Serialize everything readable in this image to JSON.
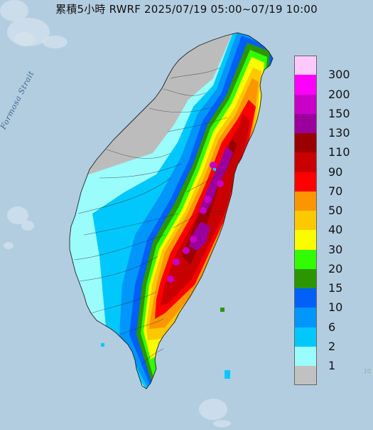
{
  "title": "累積5小時 RWRF 2025/07/19 05:00~07/19 10:00",
  "sea_label": "Formosa Strait",
  "legend": [
    {
      "label": "300",
      "color": "#fdc9fb"
    },
    {
      "label": "200",
      "color": "#fc00fc"
    },
    {
      "label": "150",
      "color": "#c800c8"
    },
    {
      "label": "130",
      "color": "#9c009c"
    },
    {
      "label": "110",
      "color": "#9a0000"
    },
    {
      "label": "90",
      "color": "#c80000"
    },
    {
      "label": "70",
      "color": "#fc0000"
    },
    {
      "label": "50",
      "color": "#fc9600"
    },
    {
      "label": "40",
      "color": "#fcc800"
    },
    {
      "label": "30",
      "color": "#fcfc00"
    },
    {
      "label": "20",
      "color": "#32fc00"
    },
    {
      "label": "15",
      "color": "#2c9600"
    },
    {
      "label": "10",
      "color": "#0060f8"
    },
    {
      "label": "6",
      "color": "#0096fa"
    },
    {
      "label": "2",
      "color": "#00c8fc"
    },
    {
      "label": "1",
      "color": "#9bfcfc"
    },
    {
      "label": "",
      "color": "#c1c1c1"
    }
  ],
  "colors": {
    "sea": "#b3cde0",
    "no_rain_land": "#bcbcbc",
    "outline": "#222222"
  }
}
